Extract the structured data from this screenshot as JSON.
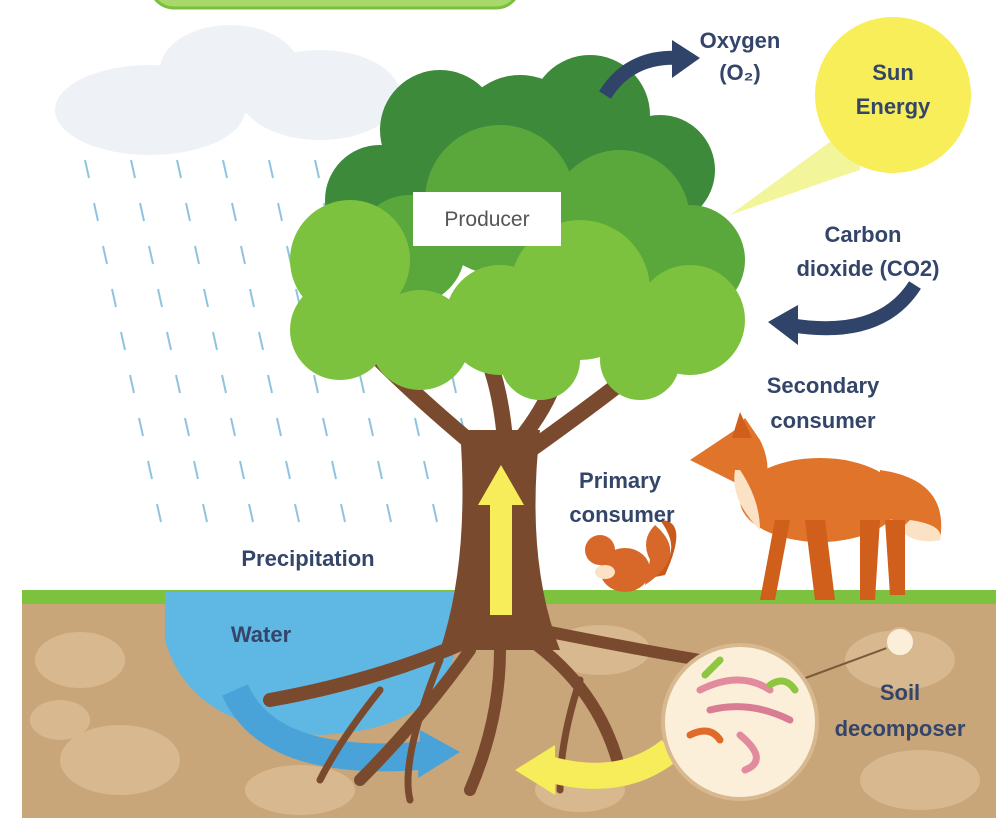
{
  "labels": {
    "oxygen": [
      "Oxygen",
      "(O₂)"
    ],
    "sun": [
      "Sun",
      "Energy"
    ],
    "producer": "Producer",
    "carbon": [
      "Carbon",
      "dioxide (CO2)"
    ],
    "secondary": [
      "Secondary",
      "consumer"
    ],
    "primary": [
      "Primary",
      "consumer"
    ],
    "precipitation": "Precipitation",
    "water": "Water",
    "decomposer": [
      "Soil",
      "decomposer"
    ]
  }
}
